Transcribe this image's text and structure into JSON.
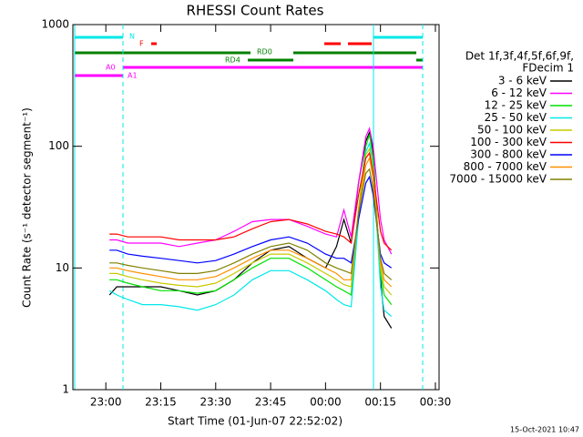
{
  "chart_data": {
    "type": "line",
    "title": "RHESSI Count Rates",
    "xlabel": "Start Time (01-Jun-07 22:52:02)",
    "ylabel": "Count Rate (s⁻¹ detector segment⁻¹)",
    "log_y": true,
    "xlim": [
      "22:51",
      "00:31"
    ],
    "ylim": [
      1,
      1000
    ],
    "yticks": [
      1,
      10,
      100,
      1000
    ],
    "xticks": [
      "23:00",
      "23:15",
      "23:30",
      "23:45",
      "00:00",
      "00:15",
      "00:30"
    ],
    "legend_title": [
      "Det 1f,3f,4f,5f,6f,9f,",
      "FDecim 1"
    ],
    "legend_position": "right",
    "footer": "15-Oct-2021 10:47",
    "annotations": [
      "N",
      "F",
      "RD0",
      "RD4",
      "A0",
      "A1"
    ],
    "x": [
      "23:01",
      "23:03",
      "23:06",
      "23:10",
      "23:15",
      "23:20",
      "23:25",
      "23:30",
      "23:35",
      "23:40",
      "23:45",
      "23:50",
      "23:55",
      "00:00",
      "00:03",
      "00:05",
      "00:07",
      "00:09",
      "00:11",
      "00:12",
      "00:13",
      "00:15",
      "00:16",
      "00:18"
    ],
    "series": [
      {
        "name": "3 - 6 keV",
        "color": "#000000",
        "values": [
          6,
          7,
          7,
          7,
          7,
          6.5,
          6,
          6.5,
          8,
          11,
          14,
          15,
          12,
          10,
          15,
          25,
          16,
          50,
          110,
          130,
          90,
          8,
          4,
          3.2
        ]
      },
      {
        "name": "6 - 12 keV",
        "color": "#ff00ff",
        "values": [
          17,
          17,
          16,
          16,
          16,
          15,
          16,
          17,
          20,
          24,
          25,
          25,
          22,
          19,
          18,
          30,
          18,
          50,
          120,
          140,
          100,
          25,
          17,
          13
        ]
      },
      {
        "name": "12 - 25 keV",
        "color": "#00e000",
        "values": [
          8,
          8,
          7.5,
          7,
          6.5,
          6.5,
          6.2,
          6.5,
          8,
          10,
          12,
          12,
          10,
          8,
          7,
          6.5,
          6,
          30,
          100,
          125,
          80,
          9,
          6,
          5
        ]
      },
      {
        "name": "25 - 50 keV",
        "color": "#00e8e8",
        "values": [
          6.5,
          6,
          5.5,
          5,
          5,
          4.8,
          4.5,
          5,
          6,
          8,
          9.5,
          9.5,
          8,
          6.5,
          5.5,
          5,
          4.8,
          25,
          90,
          105,
          70,
          7,
          4.5,
          4
        ]
      },
      {
        "name": "50 - 100 keV",
        "color": "#c8c800",
        "values": [
          9,
          9,
          8.5,
          8,
          7.5,
          7.2,
          7,
          7.5,
          9,
          11,
          13,
          13,
          11,
          9,
          8,
          7.3,
          7,
          30,
          85,
          95,
          65,
          10,
          7,
          6
        ]
      },
      {
        "name": "100 - 300 keV",
        "color": "#ff0000",
        "values": [
          19,
          19,
          18,
          18,
          18,
          17,
          17,
          17,
          18,
          21,
          24,
          25,
          23,
          20,
          19,
          18,
          16,
          40,
          80,
          88,
          60,
          20,
          16,
          14
        ]
      },
      {
        "name": "300 - 800 keV",
        "color": "#0000ff",
        "values": [
          14,
          14,
          13,
          12.5,
          12,
          11.5,
          11,
          11.5,
          13,
          15,
          17,
          18,
          16,
          13,
          12,
          12,
          11,
          25,
          50,
          56,
          40,
          13,
          11,
          10
        ]
      },
      {
        "name": "800 - 7000 keV",
        "color": "#ff9000",
        "values": [
          10,
          10,
          9.5,
          9,
          8.5,
          8,
          8,
          8.5,
          10,
          12,
          14,
          14,
          12,
          10,
          9,
          8,
          8,
          30,
          70,
          80,
          55,
          11,
          8,
          7
        ]
      },
      {
        "name": "7000 - 15000 keV",
        "color": "#808000",
        "values": [
          11,
          11,
          10.5,
          10,
          9.5,
          9,
          9,
          9.5,
          11,
          13,
          15,
          16,
          14,
          11,
          10,
          9.5,
          9,
          28,
          60,
          65,
          45,
          12,
          9,
          8
        ]
      }
    ]
  }
}
